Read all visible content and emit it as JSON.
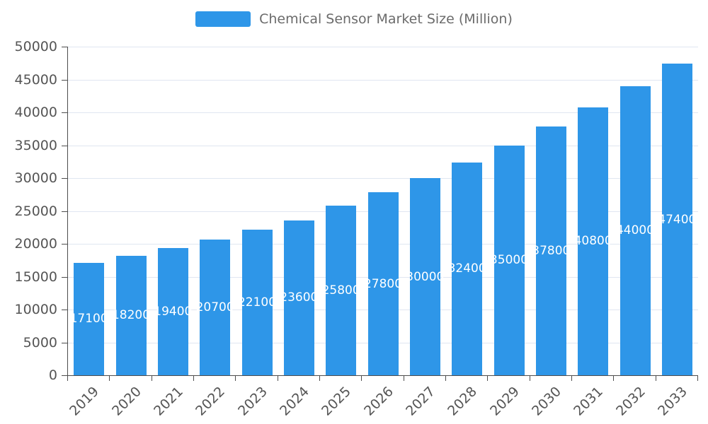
{
  "legend": {
    "label": "Chemical Sensor Market Size (Million)"
  },
  "chart_data": {
    "type": "bar",
    "title": "Chemical Sensor Market Size (Million)",
    "categories": [
      "2019",
      "2020",
      "2021",
      "2022",
      "2023",
      "2024",
      "2025",
      "2026",
      "2027",
      "2028",
      "2029",
      "2030",
      "2031",
      "2032",
      "2033"
    ],
    "values": [
      17100,
      18200,
      19400,
      20700,
      22100,
      23600,
      25800,
      27800,
      30000,
      32400,
      35000,
      37800,
      40800,
      44000,
      47400
    ],
    "xlabel": "",
    "ylabel": "",
    "ylim": [
      0,
      50000
    ],
    "ytick_step": 5000,
    "grid": true,
    "legend_position": "top",
    "bar_color": "#2e96e8",
    "bar_label_color": "#ffffff",
    "axis_text_color": "#555555",
    "gridline_color": "#e0e6f1",
    "axis_line_color": "#4d4d4d"
  }
}
